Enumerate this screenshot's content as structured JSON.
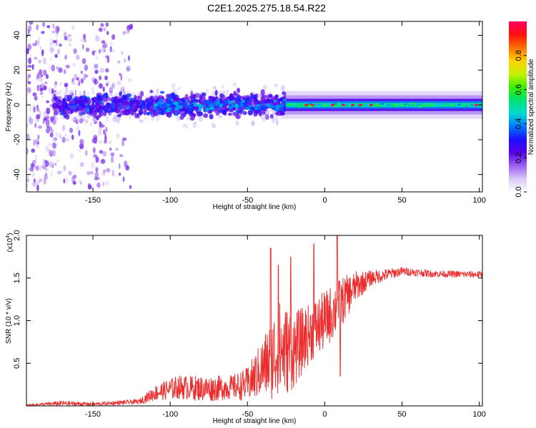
{
  "title": "C2E1.2025.275.18.54.R22",
  "chart_data": [
    {
      "type": "heatmap",
      "xlabel": "Height of straight line (km)",
      "ylabel": "Frequency (Hz)",
      "xlim": [
        -193,
        102
      ],
      "ylim": [
        -50,
        48
      ],
      "xticks": [
        -150,
        -100,
        -50,
        0,
        50,
        100
      ],
      "xtick_labels": [
        "-150",
        "-100",
        "-50",
        "0",
        "50",
        "100"
      ],
      "yticks": [
        -40,
        -20,
        0,
        20,
        40
      ],
      "ytick_labels": [
        "-40",
        "-20",
        "0",
        "20",
        "40"
      ],
      "colorbar": {
        "label": "Normalized spectral amplitude",
        "range": [
          0,
          1
        ],
        "ticks": [
          0.0,
          0.2,
          0.4,
          0.6,
          0.8
        ],
        "tick_labels": [
          "0.0",
          "0.2",
          "0.4",
          "0.6",
          "0.8"
        ],
        "colormap": [
          "#ffffff",
          "#d8c8f5",
          "#9a60f0",
          "#5a00e8",
          "#1a10ff",
          "#0078ff",
          "#00dcd0",
          "#00e070",
          "#3cf000",
          "#c8f000",
          "#ffd000",
          "#ff7000",
          "#ff1010",
          "#ff0060"
        ]
      },
      "description_regions": [
        {
          "x_range": [
            -193,
            -125
          ],
          "freq_spread": 48,
          "amplitude": 0.15
        },
        {
          "x_range": [
            -125,
            -25
          ],
          "freq_spread": 10,
          "amplitude": 0.3
        },
        {
          "x_range": [
            -25,
            102
          ],
          "freq_spread": 2,
          "amplitude": 0.55
        }
      ]
    },
    {
      "type": "line",
      "xlabel": "Height of straight line (km)",
      "ylabel": "SNR (10 * v/v)",
      "y_exponent_label": "(x10",
      "y_exponent": "4",
      "y_exponent_close": ")",
      "xlim": [
        -193,
        102
      ],
      "ylim": [
        0,
        20000
      ],
      "xticks": [
        -150,
        -100,
        -50,
        0,
        50,
        100
      ],
      "xtick_labels": [
        "-150",
        "-100",
        "-50",
        "0",
        "50",
        "100"
      ],
      "yticks": [
        5000,
        10000,
        15000,
        20000
      ],
      "ytick_labels": [
        "0.5",
        "1.0",
        "1.5",
        "2.0"
      ],
      "line_color": "#ee2b2b",
      "anchor_points": [
        {
          "x": -193,
          "y": 100,
          "noise": 80
        },
        {
          "x": -170,
          "y": 300,
          "noise": 300
        },
        {
          "x": -150,
          "y": 200,
          "noise": 200
        },
        {
          "x": -120,
          "y": 500,
          "noise": 300
        },
        {
          "x": -110,
          "y": 1500,
          "noise": 900
        },
        {
          "x": -95,
          "y": 2200,
          "noise": 1400
        },
        {
          "x": -75,
          "y": 2000,
          "noise": 1500
        },
        {
          "x": -60,
          "y": 2200,
          "noise": 1400
        },
        {
          "x": -50,
          "y": 2500,
          "noise": 2000
        },
        {
          "x": -40,
          "y": 4500,
          "noise": 3500
        },
        {
          "x": -30,
          "y": 6500,
          "noise": 6000
        },
        {
          "x": -20,
          "y": 6500,
          "noise": 4500
        },
        {
          "x": -10,
          "y": 8500,
          "noise": 3500
        },
        {
          "x": 0,
          "y": 10000,
          "noise": 3500
        },
        {
          "x": 10,
          "y": 12000,
          "noise": 3000
        },
        {
          "x": 20,
          "y": 14000,
          "noise": 1800
        },
        {
          "x": 30,
          "y": 15000,
          "noise": 900
        },
        {
          "x": 50,
          "y": 15800,
          "noise": 500
        },
        {
          "x": 70,
          "y": 15500,
          "noise": 400
        },
        {
          "x": 102,
          "y": 15400,
          "noise": 400
        }
      ],
      "spikes": [
        {
          "x": -35,
          "y": 18500
        },
        {
          "x": -30,
          "y": 16500
        },
        {
          "x": -22,
          "y": 17500
        },
        {
          "x": -7,
          "y": 19000
        },
        {
          "x": 8,
          "y": 20000
        },
        {
          "x": 10,
          "y": 3500
        }
      ]
    }
  ]
}
